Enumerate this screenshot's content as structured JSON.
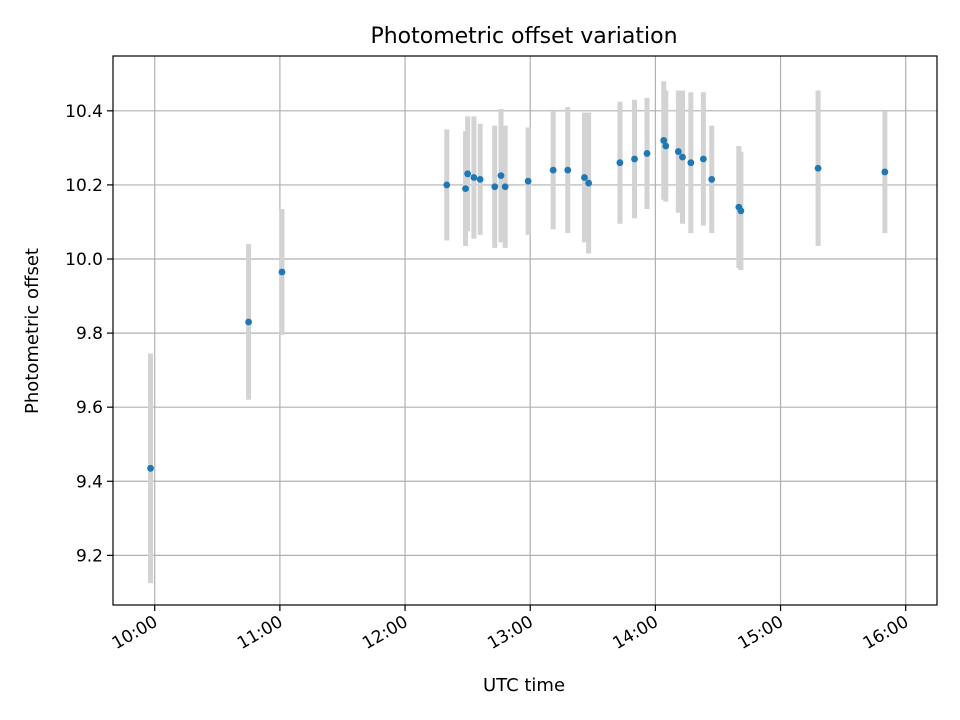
{
  "chart_data": {
    "type": "scatter",
    "title": "Photometric offset variation",
    "xlabel": "UTC time",
    "ylabel": "Photometric offset",
    "x_tick_labels": [
      "10:00",
      "11:00",
      "12:00",
      "13:00",
      "14:00",
      "15:00",
      "16:00"
    ],
    "y_tick_labels": [
      "9.2",
      "9.4",
      "9.6",
      "9.8",
      "10.0",
      "10.2",
      "10.4"
    ],
    "grid": true,
    "colors": {
      "point": "#1f77b4",
      "errorbar": "#d3d3d3",
      "grid": "#b0b0b0"
    },
    "series": [
      {
        "points": [
          {
            "x": "09:58",
            "y": 9.435,
            "yerr": 0.31
          },
          {
            "x": "10:45",
            "y": 9.83,
            "yerr": 0.21
          },
          {
            "x": "11:01",
            "y": 9.965,
            "yerr": 0.17
          },
          {
            "x": "12:20",
            "y": 10.2,
            "yerr": 0.15
          },
          {
            "x": "12:29",
            "y": 10.19,
            "yerr": 0.155
          },
          {
            "x": "12:30",
            "y": 10.23,
            "yerr": 0.155
          },
          {
            "x": "12:33",
            "y": 10.22,
            "yerr": 0.165
          },
          {
            "x": "12:36",
            "y": 10.215,
            "yerr": 0.15
          },
          {
            "x": "12:43",
            "y": 10.195,
            "yerr": 0.165
          },
          {
            "x": "12:46",
            "y": 10.225,
            "yerr": 0.18
          },
          {
            "x": "12:48",
            "y": 10.195,
            "yerr": 0.165
          },
          {
            "x": "12:59",
            "y": 10.21,
            "yerr": 0.145
          },
          {
            "x": "13:11",
            "y": 10.24,
            "yerr": 0.16
          },
          {
            "x": "13:18",
            "y": 10.24,
            "yerr": 0.17
          },
          {
            "x": "13:26",
            "y": 10.22,
            "yerr": 0.175
          },
          {
            "x": "13:28",
            "y": 10.205,
            "yerr": 0.19
          },
          {
            "x": "13:43",
            "y": 10.26,
            "yerr": 0.165
          },
          {
            "x": "13:50",
            "y": 10.27,
            "yerr": 0.16
          },
          {
            "x": "13:56",
            "y": 10.285,
            "yerr": 0.15
          },
          {
            "x": "14:04",
            "y": 10.32,
            "yerr": 0.16
          },
          {
            "x": "14:05",
            "y": 10.305,
            "yerr": 0.15
          },
          {
            "x": "14:11",
            "y": 10.29,
            "yerr": 0.165
          },
          {
            "x": "14:13",
            "y": 10.275,
            "yerr": 0.18
          },
          {
            "x": "14:17",
            "y": 10.26,
            "yerr": 0.19
          },
          {
            "x": "14:23",
            "y": 10.27,
            "yerr": 0.18
          },
          {
            "x": "14:27",
            "y": 10.215,
            "yerr": 0.145
          },
          {
            "x": "14:40",
            "y": 10.14,
            "yerr": 0.165
          },
          {
            "x": "14:41",
            "y": 10.13,
            "yerr": 0.16
          },
          {
            "x": "15:18",
            "y": 10.245,
            "yerr": 0.21
          },
          {
            "x": "15:50",
            "y": 10.235,
            "yerr": 0.165
          }
        ]
      }
    ]
  }
}
